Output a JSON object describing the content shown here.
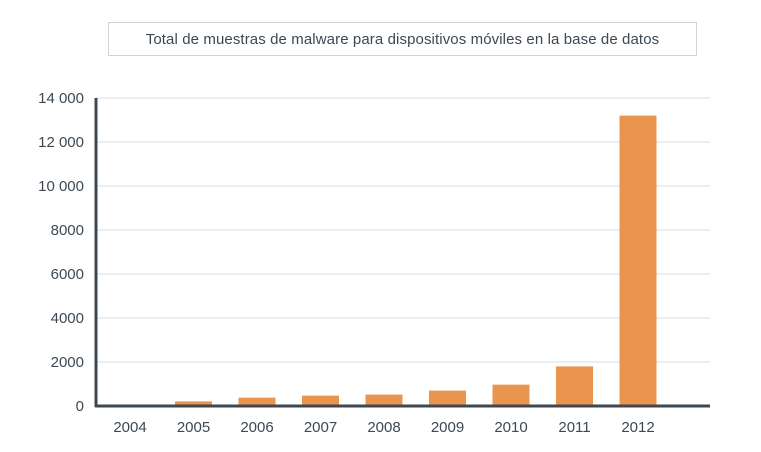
{
  "chart_data": {
    "type": "bar",
    "title": "Total de muestras de malware para dispositivos móviles en la base de datos",
    "xlabel": "",
    "ylabel": "",
    "categories": [
      "2004",
      "2005",
      "2006",
      "2007",
      "2008",
      "2009",
      "2010",
      "2011",
      "2012"
    ],
    "values": [
      50,
      210,
      380,
      470,
      520,
      700,
      970,
      1800,
      13200
    ],
    "ylim": [
      0,
      14000
    ],
    "yticks": [
      0,
      2000,
      4000,
      6000,
      8000,
      10000,
      12000,
      14000
    ],
    "ytick_labels": [
      "0",
      "2000",
      "4000",
      "6000",
      "8000",
      "10 000",
      "12 000",
      "14 000"
    ],
    "grid": true,
    "legend": "none",
    "colors": {
      "bar": "#e99550",
      "axis": "#3d4852",
      "grid": "#d9dcdf",
      "text": "#3d4852"
    }
  }
}
